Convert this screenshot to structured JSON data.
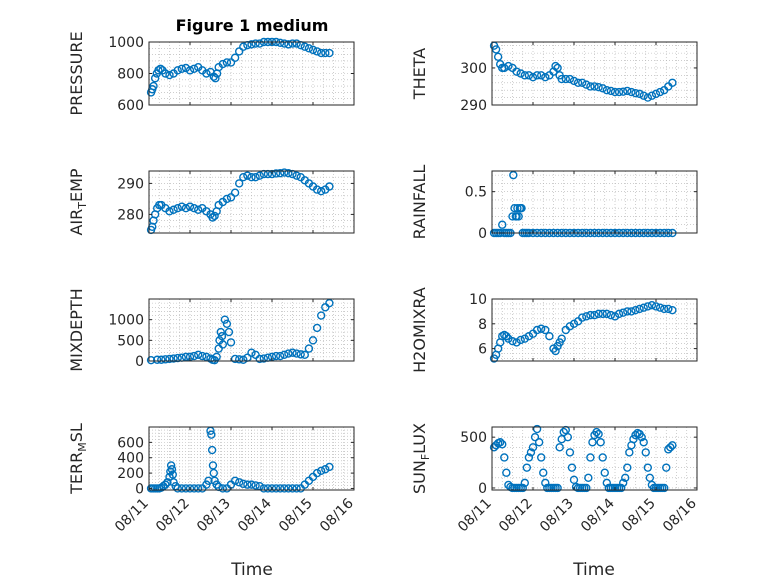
{
  "figure_title": "Figure 1 medium",
  "x_axis_label": "Time",
  "x_tick_labels": [
    "08/11",
    "08/12",
    "08/13",
    "08/14",
    "08/15",
    "08/16"
  ],
  "colors": {
    "marker": "#0072BD",
    "axis": "#262626",
    "grid": "#b0b0b0"
  },
  "chart_data": [
    {
      "type": "scatter",
      "title": "Figure 1 medium",
      "ylabel": "PRESSURE",
      "ylabel_main": "PRESSURE",
      "ylabel_sub": "",
      "ylabel_tail": "",
      "xlim": [
        0,
        5
      ],
      "ylim": [
        600,
        1000
      ],
      "yticks": [
        600,
        800,
        1000
      ],
      "xlabel": "",
      "x_ticks": [
        "08/11",
        "08/12",
        "08/13",
        "08/14",
        "08/15",
        "08/16"
      ],
      "grid": true,
      "x": [
        0.05,
        0.08,
        0.11,
        0.15,
        0.19,
        0.23,
        0.28,
        0.33,
        0.4,
        0.5,
        0.6,
        0.7,
        0.8,
        0.9,
        1.0,
        1.1,
        1.2,
        1.3,
        1.4,
        1.5,
        1.58,
        1.62,
        1.66,
        1.7,
        1.8,
        1.9,
        2.0,
        2.1,
        2.2,
        2.3,
        2.4,
        2.5,
        2.6,
        2.7,
        2.8,
        2.9,
        3.0,
        3.1,
        3.2,
        3.3,
        3.4,
        3.5,
        3.6,
        3.7,
        3.8,
        3.9,
        4.0,
        4.1,
        4.2,
        4.3,
        4.4
      ],
      "y": [
        680,
        700,
        720,
        770,
        800,
        820,
        830,
        820,
        800,
        790,
        800,
        820,
        830,
        835,
        820,
        830,
        840,
        820,
        800,
        810,
        780,
        770,
        800,
        840,
        860,
        870,
        870,
        900,
        940,
        970,
        980,
        985,
        990,
        990,
        1000,
        1000,
        1000,
        1000,
        995,
        990,
        985,
        990,
        990,
        980,
        970,
        960,
        950,
        940,
        930,
        930,
        930
      ]
    },
    {
      "type": "scatter",
      "title": "",
      "ylabel": "THETA",
      "ylabel_main": "THETA",
      "ylabel_sub": "",
      "ylabel_tail": "",
      "xlim": [
        0,
        5
      ],
      "ylim": [
        290,
        307
      ],
      "yticks": [
        290,
        300
      ],
      "xlabel": "",
      "x_ticks": [
        "08/11",
        "08/12",
        "08/13",
        "08/14",
        "08/15",
        "08/16"
      ],
      "grid": true,
      "x": [
        0.05,
        0.1,
        0.15,
        0.2,
        0.25,
        0.3,
        0.4,
        0.5,
        0.6,
        0.7,
        0.8,
        0.9,
        1.0,
        1.1,
        1.2,
        1.3,
        1.4,
        1.5,
        1.55,
        1.6,
        1.65,
        1.7,
        1.8,
        1.9,
        2.0,
        2.1,
        2.2,
        2.3,
        2.4,
        2.5,
        2.6,
        2.7,
        2.8,
        2.9,
        3.0,
        3.1,
        3.2,
        3.3,
        3.4,
        3.5,
        3.6,
        3.7,
        3.8,
        3.9,
        4.0,
        4.1,
        4.2,
        4.3,
        4.4
      ],
      "y": [
        306,
        305,
        303,
        301,
        300,
        300,
        300.5,
        300,
        299,
        298.5,
        298,
        298,
        297.5,
        298,
        298,
        297.5,
        298,
        299,
        300.5,
        300,
        298,
        297,
        297,
        297,
        296.5,
        296,
        296,
        295.5,
        295,
        295,
        294.8,
        294.5,
        294,
        293.8,
        293.5,
        293.5,
        293.6,
        293.8,
        293.5,
        293.2,
        293,
        292.5,
        292,
        292.5,
        293,
        293.5,
        294,
        295,
        296
      ]
    },
    {
      "type": "scatter",
      "title": "",
      "ylabel": "AIR_TEMP",
      "ylabel_main": "AIR",
      "ylabel_sub": "T",
      "ylabel_tail": "EMP",
      "xlim": [
        0,
        5
      ],
      "ylim": [
        274,
        294
      ],
      "yticks": [
        280,
        290
      ],
      "xlabel": "",
      "x_ticks": [
        "08/11",
        "08/12",
        "08/13",
        "08/14",
        "08/15",
        "08/16"
      ],
      "grid": true,
      "x": [
        0.05,
        0.08,
        0.11,
        0.15,
        0.2,
        0.25,
        0.3,
        0.4,
        0.5,
        0.6,
        0.7,
        0.8,
        0.9,
        1.0,
        1.1,
        1.2,
        1.3,
        1.4,
        1.5,
        1.55,
        1.6,
        1.65,
        1.7,
        1.8,
        1.9,
        2.0,
        2.1,
        2.2,
        2.3,
        2.4,
        2.5,
        2.6,
        2.7,
        2.8,
        2.9,
        3.0,
        3.1,
        3.2,
        3.3,
        3.4,
        3.5,
        3.6,
        3.7,
        3.8,
        3.9,
        4.0,
        4.1,
        4.2,
        4.3,
        4.4
      ],
      "y": [
        275,
        276,
        278,
        280,
        282,
        283,
        283,
        282,
        281,
        281.5,
        282,
        282.5,
        282,
        282.5,
        282,
        281.5,
        282,
        281,
        280,
        279,
        279.5,
        281,
        283,
        284,
        285,
        285.5,
        287,
        290,
        292,
        292.5,
        292,
        292,
        292.5,
        293,
        293,
        293,
        293.2,
        293.3,
        293.5,
        293.3,
        293,
        292.5,
        292,
        291,
        290,
        289,
        288,
        287.5,
        288,
        289
      ]
    },
    {
      "type": "scatter",
      "title": "",
      "ylabel": "RAINFALL",
      "ylabel_main": "RAINFALL",
      "ylabel_sub": "",
      "ylabel_tail": "",
      "xlim": [
        0,
        5
      ],
      "ylim": [
        0,
        0.75
      ],
      "yticks": [
        0,
        0.5
      ],
      "xlabel": "",
      "x_ticks": [
        "08/11",
        "08/12",
        "08/13",
        "08/14",
        "08/15",
        "08/16"
      ],
      "grid": true,
      "x": [
        0.05,
        0.1,
        0.15,
        0.2,
        0.25,
        0.3,
        0.35,
        0.4,
        0.45,
        0.5,
        0.52,
        0.55,
        0.58,
        0.6,
        0.62,
        0.65,
        0.68,
        0.7,
        0.72,
        0.75,
        0.8,
        0.85,
        0.9,
        1.0,
        1.1,
        1.2,
        1.3,
        1.4,
        1.5,
        1.6,
        1.7,
        1.8,
        1.9,
        2.0,
        2.1,
        2.2,
        2.3,
        2.4,
        2.5,
        2.6,
        2.7,
        2.8,
        2.9,
        3.0,
        3.1,
        3.2,
        3.3,
        3.4,
        3.5,
        3.6,
        3.7,
        3.8,
        3.9,
        4.0,
        4.1,
        4.2,
        4.3,
        4.4
      ],
      "y": [
        0,
        0,
        0,
        0,
        0.1,
        0,
        0,
        0,
        0,
        0.2,
        0.7,
        0.3,
        0.2,
        0.2,
        0.3,
        0.2,
        0.3,
        0.3,
        0.3,
        0,
        0,
        0,
        0,
        0,
        0,
        0,
        0,
        0,
        0,
        0,
        0,
        0,
        0,
        0,
        0,
        0,
        0,
        0,
        0,
        0,
        0,
        0,
        0,
        0,
        0,
        0,
        0,
        0,
        0,
        0,
        0,
        0,
        0,
        0,
        0,
        0,
        0,
        0
      ]
    },
    {
      "type": "scatter",
      "title": "",
      "ylabel": "MIXDEPTH",
      "ylabel_main": "MIXDEPTH",
      "ylabel_sub": "",
      "ylabel_tail": "",
      "xlim": [
        0,
        5
      ],
      "ylim": [
        0,
        1500
      ],
      "yticks": [
        0,
        500,
        1000
      ],
      "xlabel": "",
      "x_ticks": [
        "08/11",
        "08/12",
        "08/13",
        "08/14",
        "08/15",
        "08/16"
      ],
      "grid": true,
      "x": [
        0.05,
        0.2,
        0.3,
        0.4,
        0.5,
        0.6,
        0.7,
        0.8,
        0.9,
        1.0,
        1.1,
        1.2,
        1.3,
        1.4,
        1.5,
        1.55,
        1.6,
        1.65,
        1.7,
        1.72,
        1.75,
        1.78,
        1.8,
        1.85,
        1.9,
        1.95,
        2.0,
        2.1,
        2.2,
        2.3,
        2.4,
        2.5,
        2.6,
        2.7,
        2.8,
        2.9,
        3.0,
        3.1,
        3.2,
        3.3,
        3.4,
        3.5,
        3.6,
        3.7,
        3.8,
        3.9,
        4.0,
        4.1,
        4.2,
        4.3,
        4.4
      ],
      "y": [
        20,
        30,
        30,
        40,
        50,
        60,
        70,
        80,
        100,
        100,
        120,
        150,
        120,
        100,
        60,
        30,
        20,
        100,
        300,
        500,
        700,
        600,
        400,
        1000,
        900,
        700,
        450,
        50,
        40,
        30,
        80,
        200,
        150,
        50,
        60,
        80,
        100,
        120,
        120,
        150,
        180,
        200,
        180,
        160,
        150,
        300,
        500,
        800,
        1100,
        1300,
        1400
      ]
    },
    {
      "type": "scatter",
      "title": "",
      "ylabel": "H2OMIXRA",
      "ylabel_main": "H2OMIXRA",
      "ylabel_sub": "",
      "ylabel_tail": "",
      "xlim": [
        0,
        5
      ],
      "ylim": [
        5,
        10
      ],
      "yticks": [
        6,
        8,
        10
      ],
      "xlabel": "",
      "x_ticks": [
        "08/11",
        "08/12",
        "08/13",
        "08/14",
        "08/15",
        "08/16"
      ],
      "grid": true,
      "x": [
        0.05,
        0.1,
        0.15,
        0.2,
        0.25,
        0.3,
        0.35,
        0.4,
        0.5,
        0.6,
        0.7,
        0.8,
        0.9,
        1.0,
        1.1,
        1.2,
        1.3,
        1.4,
        1.5,
        1.55,
        1.6,
        1.65,
        1.7,
        1.8,
        1.9,
        2.0,
        2.1,
        2.2,
        2.3,
        2.4,
        2.5,
        2.6,
        2.7,
        2.8,
        2.9,
        3.0,
        3.1,
        3.2,
        3.3,
        3.4,
        3.5,
        3.6,
        3.7,
        3.8,
        3.9,
        4.0,
        4.1,
        4.2,
        4.3,
        4.4
      ],
      "y": [
        5.2,
        5.5,
        6,
        6.5,
        7,
        7.1,
        7,
        6.8,
        6.6,
        6.5,
        6.7,
        6.8,
        7,
        7.2,
        7.5,
        7.6,
        7.5,
        7,
        6,
        5.8,
        6.2,
        6.5,
        6.8,
        7.5,
        7.8,
        8,
        8.2,
        8.5,
        8.6,
        8.7,
        8.7,
        8.8,
        8.8,
        8.8,
        8.7,
        8.6,
        8.8,
        8.9,
        9,
        9,
        9.1,
        9.2,
        9.3,
        9.4,
        9.5,
        9.4,
        9.3,
        9.2,
        9.2,
        9.1
      ]
    },
    {
      "type": "scatter",
      "title": "",
      "ylabel": "TERR_MSL",
      "ylabel_main": "TERR",
      "ylabel_sub": "M",
      "ylabel_tail": "SL",
      "xlim": [
        0,
        5
      ],
      "ylim": [
        -20,
        800
      ],
      "yticks": [
        0,
        200,
        400,
        600
      ],
      "xlabel": "Time",
      "x_ticks": [
        "08/11",
        "08/12",
        "08/13",
        "08/14",
        "08/15",
        "08/16"
      ],
      "grid": true,
      "x": [
        0.05,
        0.1,
        0.15,
        0.2,
        0.25,
        0.3,
        0.35,
        0.4,
        0.45,
        0.5,
        0.52,
        0.54,
        0.56,
        0.58,
        0.6,
        0.65,
        0.7,
        0.8,
        0.9,
        1.0,
        1.1,
        1.2,
        1.3,
        1.4,
        1.45,
        1.5,
        1.52,
        1.54,
        1.56,
        1.58,
        1.6,
        1.65,
        1.7,
        1.8,
        1.9,
        2.0,
        2.1,
        2.2,
        2.3,
        2.4,
        2.5,
        2.6,
        2.7,
        2.8,
        2.9,
        3.0,
        3.1,
        3.2,
        3.3,
        3.4,
        3.5,
        3.6,
        3.7,
        3.8,
        3.9,
        4.0,
        4.1,
        4.2,
        4.3,
        4.4
      ],
      "y": [
        0,
        0,
        0,
        0,
        0,
        10,
        30,
        50,
        80,
        150,
        220,
        300,
        250,
        180,
        80,
        30,
        0,
        0,
        0,
        0,
        0,
        0,
        0,
        50,
        100,
        750,
        700,
        500,
        300,
        200,
        100,
        50,
        20,
        0,
        0,
        50,
        100,
        80,
        60,
        50,
        50,
        40,
        30,
        0,
        0,
        0,
        0,
        0,
        0,
        0,
        0,
        0,
        0,
        50,
        100,
        150,
        200,
        230,
        250,
        280
      ]
    },
    {
      "type": "scatter",
      "title": "",
      "ylabel": "SUN_FLUX",
      "ylabel_main": "SUN",
      "ylabel_sub": "F",
      "ylabel_tail": "LUX",
      "xlim": [
        0,
        5
      ],
      "ylim": [
        -20,
        600
      ],
      "yticks": [
        0,
        500
      ],
      "xlabel": "Time",
      "x_ticks": [
        "08/11",
        "08/12",
        "08/13",
        "08/14",
        "08/15",
        "08/16"
      ],
      "grid": true,
      "x": [
        0.05,
        0.1,
        0.15,
        0.2,
        0.25,
        0.3,
        0.35,
        0.4,
        0.45,
        0.5,
        0.55,
        0.6,
        0.65,
        0.7,
        0.75,
        0.8,
        0.85,
        0.9,
        0.95,
        1.0,
        1.05,
        1.1,
        1.15,
        1.2,
        1.25,
        1.3,
        1.35,
        1.4,
        1.45,
        1.5,
        1.55,
        1.6,
        1.65,
        1.7,
        1.75,
        1.8,
        1.85,
        1.9,
        1.95,
        2.0,
        2.05,
        2.1,
        2.15,
        2.2,
        2.25,
        2.3,
        2.35,
        2.4,
        2.45,
        2.5,
        2.55,
        2.6,
        2.65,
        2.7,
        2.75,
        2.8,
        2.85,
        2.9,
        2.95,
        3.0,
        3.05,
        3.1,
        3.15,
        3.2,
        3.25,
        3.3,
        3.35,
        3.4,
        3.45,
        3.5,
        3.55,
        3.6,
        3.65,
        3.7,
        3.75,
        3.8,
        3.85,
        3.9,
        3.95,
        4.0,
        4.05,
        4.1,
        4.15,
        4.2,
        4.25,
        4.3,
        4.35,
        4.4
      ],
      "y": [
        400,
        420,
        440,
        450,
        430,
        300,
        150,
        30,
        10,
        0,
        0,
        0,
        0,
        0,
        0,
        50,
        200,
        300,
        350,
        400,
        500,
        580,
        450,
        300,
        150,
        50,
        0,
        0,
        0,
        0,
        0,
        0,
        400,
        480,
        550,
        570,
        500,
        350,
        200,
        80,
        10,
        0,
        0,
        0,
        0,
        0,
        100,
        300,
        450,
        520,
        550,
        530,
        450,
        300,
        150,
        50,
        0,
        0,
        0,
        0,
        0,
        0,
        0,
        50,
        100,
        200,
        350,
        420,
        480,
        520,
        540,
        530,
        500,
        450,
        350,
        200,
        100,
        30,
        0,
        0,
        0,
        0,
        0,
        0,
        200,
        380,
        400,
        420
      ]
    }
  ]
}
